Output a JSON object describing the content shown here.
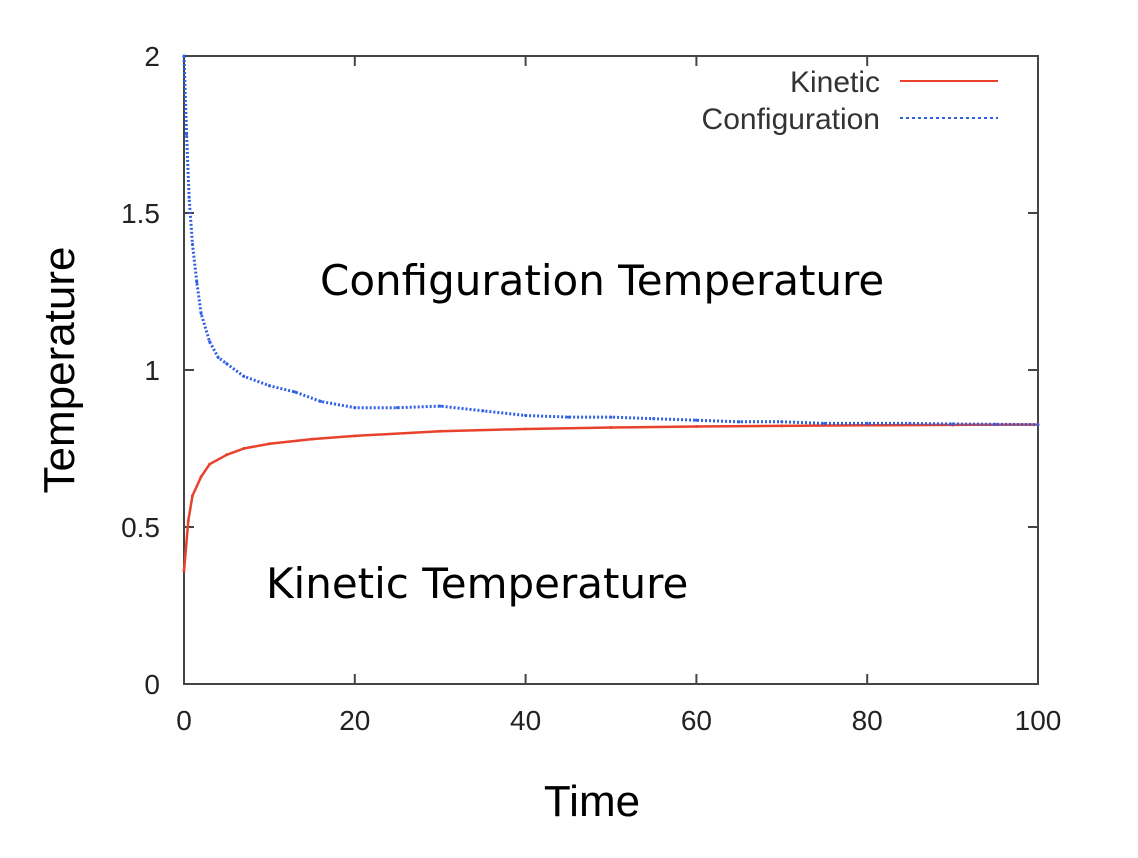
{
  "chart_data": {
    "type": "line",
    "title": "",
    "xlabel": "Time",
    "ylabel": "Temperature",
    "xlim": [
      0,
      100
    ],
    "ylim": [
      0,
      2
    ],
    "x_ticks": [
      0,
      20,
      40,
      60,
      80,
      100
    ],
    "y_ticks": [
      0,
      0.5,
      1,
      1.5,
      2
    ],
    "x_tick_labels": [
      "0",
      "20",
      "40",
      "60",
      "80",
      "100"
    ],
    "y_tick_labels": [
      "0",
      "0.5",
      "1",
      "1.5",
      "2"
    ],
    "grid": false,
    "legend_position": "top-right",
    "series": [
      {
        "name": "Kinetic",
        "color": "#e8412c",
        "style": "solid",
        "x": [
          0,
          0.5,
          1,
          2,
          3,
          5,
          7,
          10,
          15,
          20,
          30,
          40,
          50,
          60,
          70,
          80,
          90,
          100
        ],
        "y": [
          0.36,
          0.52,
          0.6,
          0.66,
          0.7,
          0.73,
          0.75,
          0.765,
          0.78,
          0.79,
          0.805,
          0.812,
          0.817,
          0.82,
          0.822,
          0.824,
          0.825,
          0.826
        ]
      },
      {
        "name": "Configuration",
        "color": "#2f5fe6",
        "style": "dotted",
        "x": [
          0,
          0.3,
          0.6,
          1,
          1.5,
          2,
          3,
          4,
          5,
          7,
          10,
          13,
          16,
          20,
          25,
          30,
          35,
          40,
          45,
          50,
          55,
          60,
          65,
          70,
          75,
          80,
          85,
          90,
          95,
          100
        ],
        "y": [
          2.0,
          1.75,
          1.55,
          1.4,
          1.28,
          1.18,
          1.09,
          1.04,
          1.02,
          0.98,
          0.95,
          0.93,
          0.9,
          0.88,
          0.88,
          0.885,
          0.87,
          0.855,
          0.85,
          0.85,
          0.845,
          0.84,
          0.835,
          0.835,
          0.83,
          0.83,
          0.83,
          0.828,
          0.827,
          0.826
        ]
      }
    ],
    "annotations": [
      {
        "text": "Configuration Temperature",
        "x": 53,
        "y": 1.28
      },
      {
        "text": "Kinetic Temperature",
        "x": 37,
        "y": 0.32
      }
    ]
  }
}
